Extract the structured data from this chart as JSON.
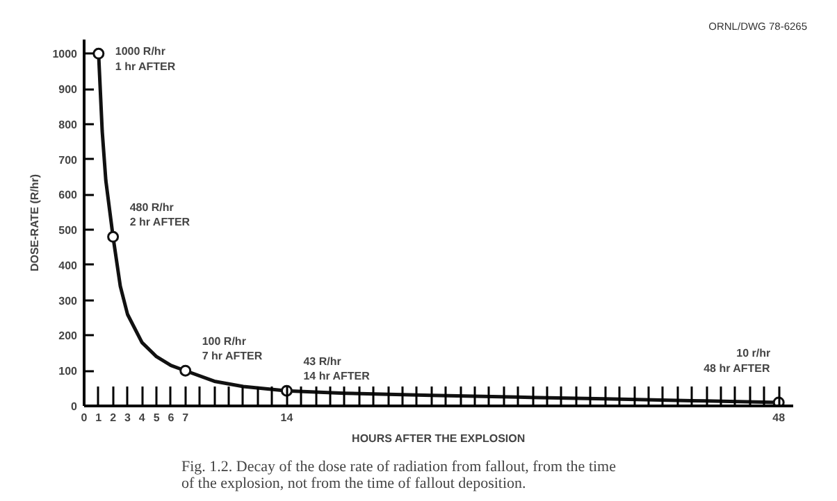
{
  "chart_data": {
    "type": "line",
    "title": "Fig. 1.2. Decay of the dose rate of radiation from fallout, from the time\nof the explosion, not from the time of fallout deposition.",
    "xlabel": "HOURS AFTER THE EXPLOSION",
    "ylabel": "DOSE-RATE (R/hr)",
    "series": [
      {
        "color": "#111111",
        "x": [
          1,
          1.25,
          1.5,
          2,
          2.5,
          3,
          4,
          5,
          6,
          7,
          9,
          11,
          14,
          18,
          24,
          30,
          36,
          42,
          48
        ],
        "values": [
          1000,
          780,
          640,
          480,
          340,
          260,
          180,
          140,
          115,
          100,
          70,
          55,
          43,
          36,
          30,
          25,
          20,
          15,
          10
        ]
      },
      {
        "type": "scatter",
        "color": "#111111",
        "marker": "circle",
        "x": [
          1,
          2,
          7,
          14,
          48
        ],
        "values": [
          1000,
          480,
          100,
          43,
          10
        ]
      }
    ],
    "xlim": [
      0,
      49
    ],
    "ylim": [
      0,
      1040
    ],
    "xticks": [
      0,
      1,
      2,
      3,
      4,
      5,
      6,
      7,
      {
        "value": 8,
        "label": null
      },
      {
        "value": 9,
        "label": null
      },
      {
        "value": 10,
        "label": null
      },
      {
        "value": 11,
        "label": null
      },
      {
        "value": 12,
        "label": null
      },
      {
        "value": 13,
        "label": null
      },
      14,
      {
        "value": 15,
        "label": null
      },
      {
        "value": 16,
        "label": null
      },
      {
        "value": 17,
        "label": null
      },
      {
        "value": 18,
        "label": null
      },
      {
        "value": 19,
        "label": null
      },
      {
        "value": 20,
        "label": null
      },
      {
        "value": 21,
        "label": null
      },
      {
        "value": 22,
        "label": null
      },
      {
        "value": 23,
        "label": null
      },
      {
        "value": 24,
        "label": null
      },
      {
        "value": 25,
        "label": null
      },
      {
        "value": 26,
        "label": null
      },
      {
        "value": 27,
        "label": null
      },
      {
        "value": 28,
        "label": null
      },
      {
        "value": 29,
        "label": null
      },
      {
        "value": 30,
        "label": null
      },
      {
        "value": 31,
        "label": null
      },
      {
        "value": 32,
        "label": null
      },
      {
        "value": 33,
        "label": null
      },
      {
        "value": 34,
        "label": null
      },
      {
        "value": 35,
        "label": null
      },
      {
        "value": 36,
        "label": null
      },
      {
        "value": 37,
        "label": null
      },
      {
        "value": 38,
        "label": null
      },
      {
        "value": 39,
        "label": null
      },
      {
        "value": 40,
        "label": null
      },
      {
        "value": 41,
        "label": null
      },
      {
        "value": 42,
        "label": null
      },
      {
        "value": 43,
        "label": null
      },
      {
        "value": 44,
        "label": null
      },
      {
        "value": 45,
        "label": null
      },
      {
        "value": 46,
        "label": null
      },
      {
        "value": 47,
        "label": null
      },
      48
    ],
    "yticks": [
      0,
      100,
      200,
      300,
      400,
      500,
      600,
      700,
      800,
      900,
      1000
    ],
    "grid": false,
    "annotations": [
      "ORNL/DWG 78-6265",
      {
        "text": "1000 R/hr\n1 hr AFTER",
        "x": 1,
        "y": 1000
      },
      {
        "text": "480 R/hr\n2 hr AFTER",
        "x": 2,
        "y": 480
      },
      {
        "text": "100 R/hr\n7 hr AFTER",
        "x": 7,
        "y": 100
      },
      {
        "text": "43 R/hr\n14 hr AFTER",
        "x": 14,
        "y": 43
      },
      {
        "text": "10 r/hr\n48 hr AFTER",
        "x": 48,
        "y": 10
      }
    ]
  }
}
